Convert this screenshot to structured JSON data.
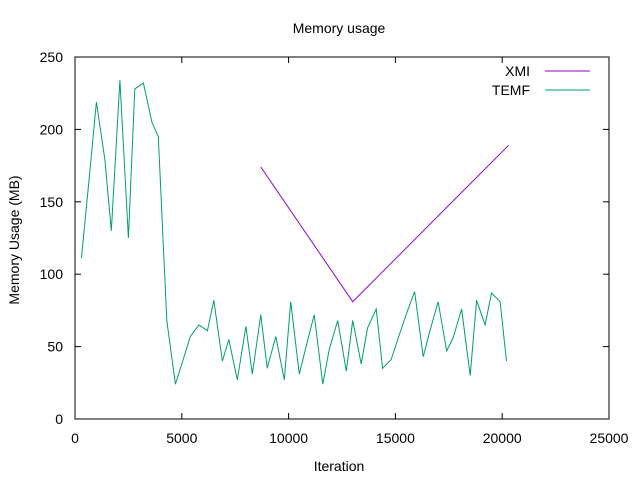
{
  "chart_data": {
    "type": "line",
    "title": "Memory usage",
    "xlabel": "Iteration",
    "ylabel": "Memory Usage (MB)",
    "xlim": [
      0,
      25000
    ],
    "ylim": [
      0,
      250
    ],
    "xticks": [
      0,
      5000,
      10000,
      15000,
      20000,
      25000
    ],
    "yticks": [
      0,
      50,
      100,
      150,
      200,
      250
    ],
    "grid": false,
    "legend_position": "top-right",
    "series": [
      {
        "name": "XMI",
        "color": "#9400d3",
        "points": [
          [
            8700,
            174
          ],
          [
            13000,
            81
          ],
          [
            20300,
            189
          ]
        ]
      },
      {
        "name": "TEMF",
        "color": "#009e73",
        "points": [
          [
            300,
            111
          ],
          [
            700,
            172
          ],
          [
            1000,
            219
          ],
          [
            1400,
            179
          ],
          [
            1700,
            130
          ],
          [
            2100,
            234
          ],
          [
            2500,
            125
          ],
          [
            2800,
            228
          ],
          [
            3200,
            232
          ],
          [
            3600,
            205
          ],
          [
            3900,
            195
          ],
          [
            4300,
            68
          ],
          [
            4700,
            24
          ],
          [
            5000,
            38
          ],
          [
            5400,
            57
          ],
          [
            5800,
            65
          ],
          [
            6200,
            61
          ],
          [
            6500,
            82
          ],
          [
            6900,
            40
          ],
          [
            7200,
            55
          ],
          [
            7600,
            27
          ],
          [
            8000,
            64
          ],
          [
            8300,
            31
          ],
          [
            8700,
            72
          ],
          [
            9000,
            35
          ],
          [
            9400,
            57
          ],
          [
            9800,
            27
          ],
          [
            10100,
            81
          ],
          [
            10500,
            31
          ],
          [
            10800,
            49
          ],
          [
            11200,
            72
          ],
          [
            11600,
            24
          ],
          [
            11900,
            48
          ],
          [
            12300,
            68
          ],
          [
            12700,
            33
          ],
          [
            13000,
            68
          ],
          [
            13400,
            38
          ],
          [
            13700,
            63
          ],
          [
            14100,
            76
          ],
          [
            14400,
            35
          ],
          [
            14800,
            41
          ],
          [
            15200,
            59
          ],
          [
            15500,
            72
          ],
          [
            15900,
            88
          ],
          [
            16300,
            43
          ],
          [
            16600,
            60
          ],
          [
            17000,
            81
          ],
          [
            17400,
            47
          ],
          [
            17700,
            56
          ],
          [
            18100,
            76
          ],
          [
            18500,
            30
          ],
          [
            18800,
            82
          ],
          [
            19200,
            65
          ],
          [
            19500,
            87
          ],
          [
            19900,
            81
          ],
          [
            20200,
            40
          ]
        ]
      }
    ]
  }
}
